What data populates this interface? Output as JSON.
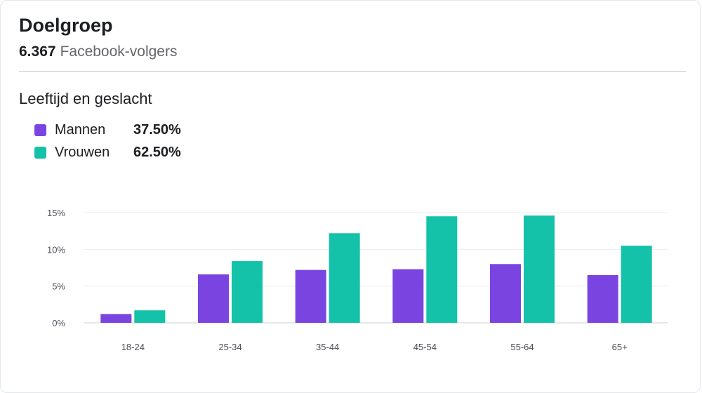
{
  "header": {
    "title": "Doelgroep",
    "follower_count": "6.367",
    "follower_label": "Facebook-volgers"
  },
  "section": {
    "title": "Leeftijd en geslacht"
  },
  "legend": [
    {
      "name": "Mannen",
      "value": "37.50%",
      "color": "#7a44e0"
    },
    {
      "name": "Vrouwen",
      "value": "62.50%",
      "color": "#13c2a8"
    }
  ],
  "chart_data": {
    "type": "bar",
    "categories": [
      "18-24",
      "25-34",
      "35-44",
      "45-54",
      "55-64",
      "65+"
    ],
    "series": [
      {
        "name": "Mannen",
        "values": [
          1.2,
          6.6,
          7.2,
          7.3,
          8.0,
          6.5
        ]
      },
      {
        "name": "Vrouwen",
        "values": [
          1.7,
          8.4,
          12.2,
          14.5,
          14.6,
          10.5
        ]
      }
    ],
    "yticks": [
      "0%",
      "5%",
      "10%",
      "15%"
    ],
    "ylim": [
      0,
      15
    ],
    "grid": true
  }
}
